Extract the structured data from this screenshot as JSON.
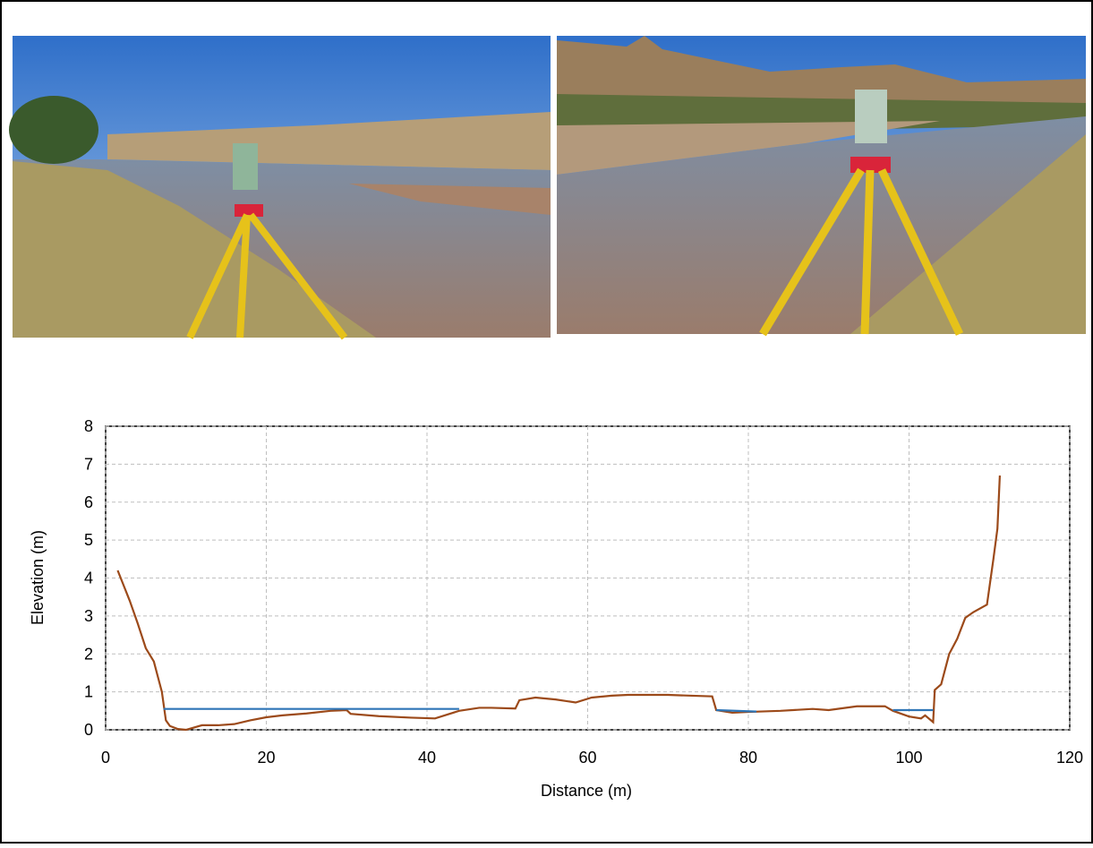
{
  "chart_data": {
    "type": "line",
    "xlabel": "Distance (m)",
    "ylabel": "Elevation (m)",
    "xlim": [
      0,
      120
    ],
    "xticks": [
      0,
      20,
      40,
      60,
      80,
      100,
      120
    ],
    "ylim": [
      0,
      8
    ],
    "yticks": [
      0,
      1,
      2,
      3,
      4,
      5,
      6,
      7,
      8
    ],
    "grid": true,
    "series": [
      {
        "color": "#9c4a1a",
        "x": [
          1.5,
          3,
          4,
          5,
          6,
          7,
          7.5,
          8,
          9,
          10,
          12,
          14,
          16,
          18,
          20,
          22,
          25,
          28,
          30,
          30.5,
          34,
          38,
          41,
          44,
          46.5,
          48,
          51,
          51.5,
          53.5,
          56,
          58.5,
          60.5,
          63,
          65,
          70,
          75.5,
          76,
          78,
          80,
          84,
          88,
          90,
          93.5,
          97,
          98,
          100,
          101.5,
          102,
          103,
          103.2,
          104,
          104.5,
          105,
          106,
          107,
          108,
          109.7,
          110.5,
          111,
          111.3
        ],
        "values": [
          4.2,
          3.4,
          2.8,
          2.15,
          1.8,
          1.0,
          0.25,
          0.1,
          0.02,
          0.0,
          0.12,
          0.12,
          0.15,
          0.25,
          0.33,
          0.38,
          0.43,
          0.5,
          0.52,
          0.42,
          0.36,
          0.32,
          0.3,
          0.5,
          0.58,
          0.58,
          0.56,
          0.78,
          0.85,
          0.8,
          0.72,
          0.85,
          0.9,
          0.92,
          0.92,
          0.88,
          0.52,
          0.45,
          0.47,
          0.5,
          0.55,
          0.52,
          0.62,
          0.62,
          0.5,
          0.35,
          0.3,
          0.38,
          0.2,
          1.05,
          1.2,
          1.6,
          2.0,
          2.4,
          2.95,
          3.1,
          3.3,
          4.5,
          5.3,
          6.7
        ]
      },
      {
        "color": "#2e75b6",
        "x": [
          7.2,
          44,
          null,
          76,
          81,
          null,
          98,
          103
        ],
        "values": [
          0.55,
          0.55,
          null,
          0.52,
          0.48,
          null,
          0.52,
          0.52
        ]
      }
    ]
  }
}
